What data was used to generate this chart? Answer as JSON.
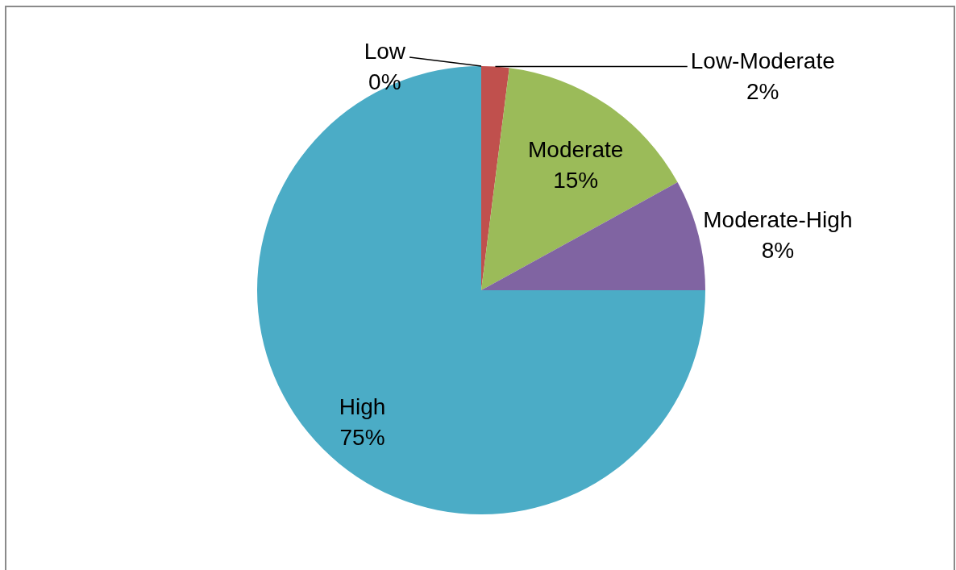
{
  "chart_data": {
    "type": "pie",
    "categories": [
      "Low",
      "Low-Moderate",
      "Moderate",
      "Moderate-High",
      "High"
    ],
    "values": [
      0,
      2,
      15,
      8,
      75
    ],
    "colors": [
      null,
      "#c0504d",
      "#9bbb59",
      "#8064a2",
      "#4bacc6"
    ],
    "value_labels": [
      "0%",
      "2%",
      "15%",
      "8%",
      "75%"
    ]
  }
}
